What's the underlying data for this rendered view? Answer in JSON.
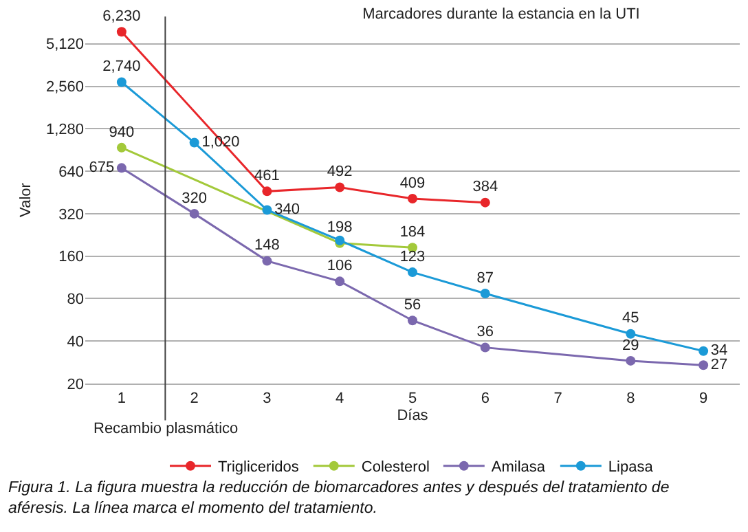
{
  "chart_data": {
    "type": "line",
    "title": "Marcadores durante la estancia en la UTI",
    "xlabel": "Días",
    "ylabel": "Valor",
    "xlim": [
      0.5,
      9.5
    ],
    "xticks": [
      1,
      2,
      3,
      4,
      5,
      6,
      7,
      8,
      9
    ],
    "ylim": [
      20,
      8000
    ],
    "log": "y",
    "yticks": [
      20,
      40,
      80,
      160,
      320,
      640,
      {
        "value": 1280,
        "label": "1,280"
      },
      {
        "value": 2560,
        "label": "2,560"
      },
      {
        "value": 5120,
        "label": "5,120"
      }
    ],
    "grid": "y",
    "legend": "bottom",
    "marker": "circle",
    "line_style": "solid",
    "series": [
      {
        "name": "Trigliceridos",
        "color": "#e8262a",
        "x": [
          1,
          3,
          4,
          5,
          6
        ],
        "values": [
          6230,
          461,
          492,
          409,
          384
        ],
        "value_labels": [
          "6,230",
          "461",
          "492",
          "409",
          "384"
        ]
      },
      {
        "name": "Colesterol",
        "color": "#a3c93a",
        "x": [
          1,
          3,
          4,
          5
        ],
        "values": [
          940,
          null,
          198,
          184
        ],
        "value_labels": [
          "940",
          null,
          "198",
          "184"
        ]
      },
      {
        "name": "Amilasa",
        "color": "#7b68ae",
        "x": [
          1,
          2,
          3,
          4,
          5,
          6,
          8,
          9
        ],
        "values": [
          675,
          320,
          148,
          106,
          56,
          36,
          29,
          27
        ],
        "value_labels": [
          "675",
          "320",
          "148",
          "106",
          "56",
          "36",
          "29",
          "27"
        ]
      },
      {
        "name": "Lipasa",
        "color": "#1b9ad7",
        "x": [
          1,
          2,
          3,
          4,
          5,
          6,
          8,
          9
        ],
        "values": [
          2740,
          1020,
          340,
          207,
          123,
          87,
          45,
          34
        ],
        "value_labels": [
          "2,740",
          "1,020",
          "340",
          null,
          "123",
          "87",
          "45",
          "34"
        ]
      }
    ],
    "ref_lines": [
      {
        "axis": "x",
        "value": 1.6,
        "label": "Recambio plasmático",
        "color": "#404040"
      }
    ],
    "annotations": [
      "Figura 1. La figura muestra la reducción de biomarcadores antes y después del tratamiento de aféresis. La línea marca el momento del tratamiento."
    ]
  }
}
